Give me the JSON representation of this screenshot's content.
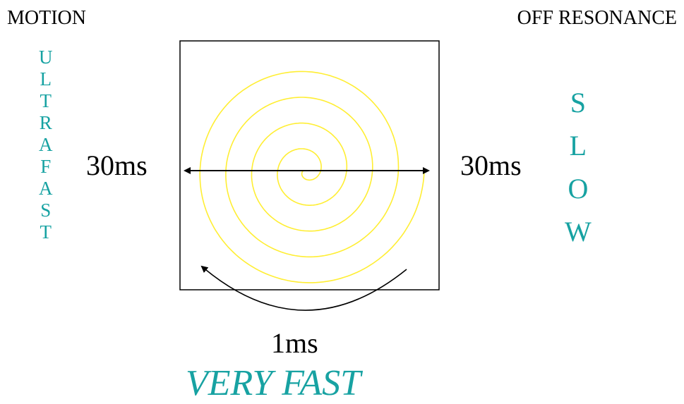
{
  "labels": {
    "top_left": "MOTION",
    "top_right": "OFF RESONANCE",
    "left_readout": "30ms",
    "right_readout": "30ms",
    "bottom_readout": "1ms",
    "speed_bottom": "VERY FAST"
  },
  "vertical_words": {
    "left": [
      "U",
      "L",
      "T",
      "R",
      "A",
      "F",
      "A",
      "S",
      "T"
    ],
    "right": [
      "S",
      "L",
      "O",
      "W"
    ]
  },
  "colors": {
    "spiral": "#ffee33",
    "accent_text": "#17a2a2",
    "line": "#000000"
  }
}
